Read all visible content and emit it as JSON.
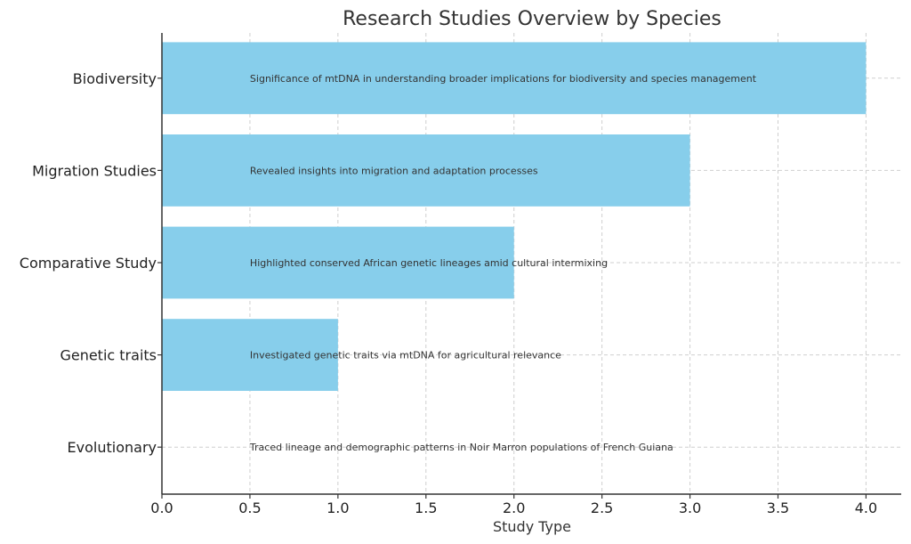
{
  "chart_data": {
    "type": "bar",
    "orientation": "horizontal",
    "title": "Research Studies Overview by Species",
    "xlabel": "Study Type",
    "ylabel": "",
    "xlim": [
      0,
      4.2
    ],
    "xticks": [
      "0.0",
      "0.5",
      "1.0",
      "1.5",
      "2.0",
      "2.5",
      "3.0",
      "3.5",
      "4.0"
    ],
    "grid": true,
    "bar_color": "#87CEEB",
    "categories": [
      "Biodiversity",
      "Migration Studies",
      "Comparative Study",
      "Genetic traits",
      "Evolutionary"
    ],
    "values": [
      4,
      3,
      2,
      1,
      0
    ],
    "annotations": [
      "Significance of mtDNA in understanding broader implications for biodiversity and species management",
      "Revealed insights into migration and adaptation processes",
      "Highlighted conserved African genetic lineages amid cultural intermixing",
      "Investigated genetic traits via mtDNA for agricultural relevance",
      "Traced lineage and demographic patterns in Noir Marron populations of French Guiana"
    ],
    "annotation_x": 0.5
  }
}
